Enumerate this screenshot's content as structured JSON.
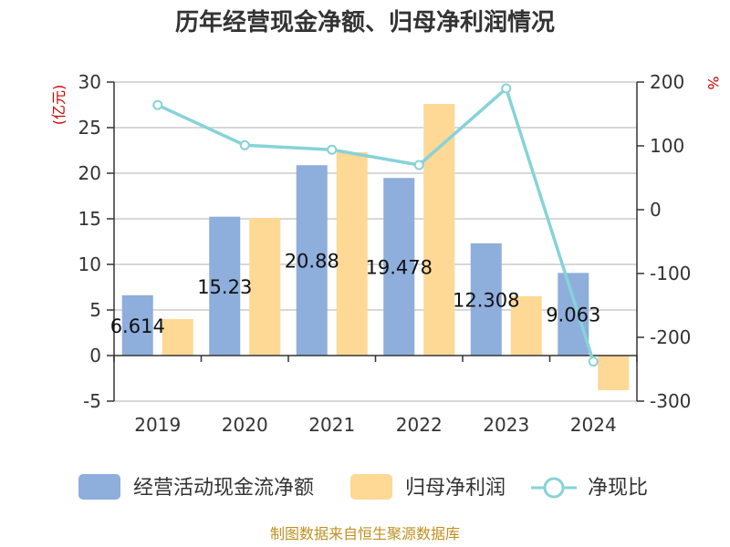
{
  "chart_data": {
    "type": "bar",
    "title": "历年经营现金净额、归母净利润情况",
    "categories": [
      "2019",
      "2020",
      "2021",
      "2022",
      "2023",
      "2024"
    ],
    "series": [
      {
        "name": "经营活动现金流净额",
        "type": "bar",
        "axis": "left",
        "color": "#8eaedc",
        "values": [
          6.614,
          15.23,
          20.88,
          19.478,
          12.308,
          9.063
        ]
      },
      {
        "name": "归母净利润",
        "type": "bar",
        "axis": "left",
        "color": "#fed895",
        "values": [
          4.0,
          15.1,
          22.3,
          27.6,
          6.5,
          -3.8
        ]
      },
      {
        "name": "净现比",
        "type": "line",
        "axis": "right",
        "color": "#86d3d8",
        "values": [
          164,
          101,
          94,
          70,
          190,
          -238
        ]
      }
    ],
    "data_labels": [
      "6.614",
      "15.23",
      "20.88",
      "19.478",
      "12.308",
      "9.063"
    ],
    "left_axis": {
      "label": "(亿元)",
      "ticks": [
        "30",
        "25",
        "20",
        "15",
        "10",
        "5",
        "0",
        "-5"
      ],
      "ylim": [
        -5,
        30
      ]
    },
    "right_axis": {
      "label": "%",
      "ticks": [
        "200",
        "100",
        "0",
        "-100",
        "-200",
        "-300"
      ],
      "ylim": [
        -300,
        200
      ]
    },
    "grid": true,
    "legend_placement": "bottom",
    "colors": {
      "axis_label": "#cc0000",
      "source": "#c09020"
    }
  },
  "source": "制图数据来自恒生聚源数据库"
}
